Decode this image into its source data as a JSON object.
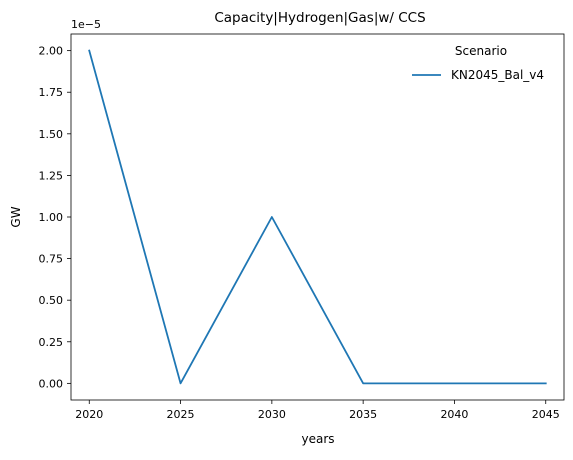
{
  "chart_data": {
    "type": "line",
    "title": "Capacity|Hydrogen|Gas|w/ CCS",
    "xlabel": "years",
    "ylabel": "GW",
    "y_offset_label": "1e−5",
    "y_scale": 1e-05,
    "x": [
      2020,
      2025,
      2030,
      2035,
      2040,
      2045
    ],
    "series": [
      {
        "name": "KN2045_Bal_v4",
        "color": "#1f77b4",
        "values": [
          2e-05,
          0.0,
          1e-05,
          0.0,
          0.0,
          0.0
        ]
      }
    ],
    "xlim": [
      2019,
      2046
    ],
    "ylim": [
      -1e-06,
      2.1e-05
    ],
    "x_ticks": [
      2020,
      2025,
      2030,
      2035,
      2040,
      2045
    ],
    "x_tick_labels": [
      "2020",
      "2025",
      "2030",
      "2035",
      "2040",
      "2045"
    ],
    "y_ticks": [
      0.0,
      0.25,
      0.5,
      0.75,
      1.0,
      1.25,
      1.5,
      1.75,
      2.0
    ],
    "y_tick_labels": [
      "0.00",
      "0.25",
      "0.50",
      "0.75",
      "1.00",
      "1.25",
      "1.50",
      "1.75",
      "2.00"
    ],
    "grid": false,
    "legend": {
      "title": "Scenario",
      "placement": "top-right"
    }
  }
}
